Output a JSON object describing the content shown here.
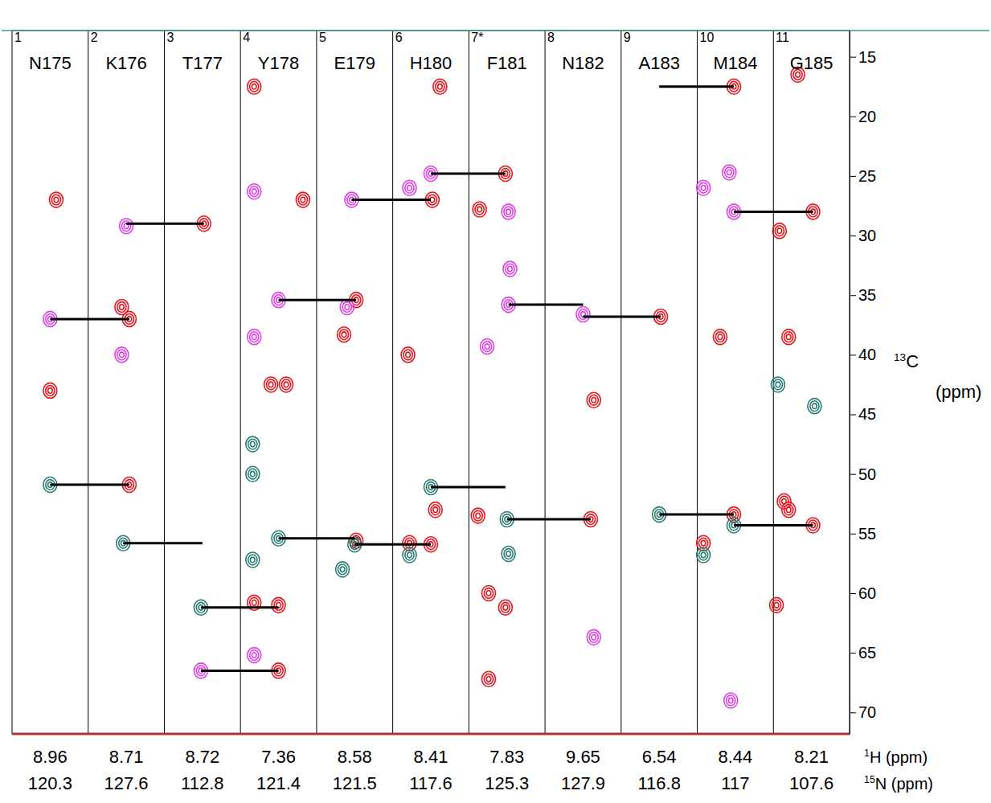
{
  "chart_data": {
    "type": "strip",
    "y_label": "13C (ppm)",
    "ylim": [
      12.8,
      71.8
    ],
    "yticks": [
      15,
      20,
      25,
      30,
      35,
      40,
      45,
      50,
      55,
      60,
      65,
      70
    ],
    "xlim": [
      -0.25,
      0.25
    ],
    "row_labels": [
      "1H (ppm)",
      "15N (ppm)"
    ],
    "strips": [
      {
        "number": "1",
        "label": "N175",
        "1H": 8.96,
        "15N": 120.3,
        "peaks": {
          "x": [
            0.04,
            0.0,
            0.0,
            0.0
          ],
          "y": [
            27.0,
            37.0,
            43.0,
            50.9
          ],
          "colors": [
            "#e8161e",
            "#e040e8",
            "#e8161e",
            "#2a7d75"
          ]
        }
      },
      {
        "number": "2",
        "label": "K176",
        "1H": 8.71,
        "15N": 127.6,
        "peaks": {
          "x": [
            0.0,
            -0.03,
            0.02,
            -0.03,
            0.02,
            -0.02
          ],
          "y": [
            29.2,
            36.0,
            37.0,
            40.0,
            50.9,
            55.8
          ],
          "colors": [
            "#e040e8",
            "#e8161e",
            "#e8161e",
            "#e040e8",
            "#e8161e",
            "#2a7d75"
          ]
        }
      },
      {
        "number": "3",
        "label": "T177",
        "1H": 8.72,
        "15N": 112.8,
        "peaks": {
          "x": [
            0.01,
            -0.01,
            -0.01
          ],
          "y": [
            29.0,
            61.2,
            66.5
          ],
          "colors": [
            "#e8161e",
            "#2a7d75",
            "#e040e8"
          ]
        }
      },
      {
        "number": "4",
        "label": "Y178",
        "1H": 7.36,
        "15N": 121.4,
        "peaks": {
          "x": [
            -0.16,
            -0.16,
            0.16,
            0.0,
            -0.16,
            -0.05,
            0.05,
            -0.17,
            -0.17,
            0.0,
            -0.17,
            -0.16,
            0.0,
            -0.16,
            0.0
          ],
          "y": [
            17.5,
            26.3,
            27.0,
            35.4,
            38.5,
            42.5,
            42.5,
            47.5,
            50.0,
            55.4,
            57.2,
            60.8,
            61.0,
            65.2,
            66.5
          ],
          "colors": [
            "#e8161e",
            "#e040e8",
            "#e8161e",
            "#e040e8",
            "#e040e8",
            "#e8161e",
            "#e8161e",
            "#2a7d75",
            "#2a7d75",
            "#2a7d75",
            "#2a7d75",
            "#e8161e",
            "#e8161e",
            "#e040e8",
            "#e8161e"
          ]
        }
      },
      {
        "number": "5",
        "label": "E179",
        "1H": 8.58,
        "15N": 121.5,
        "peaks": {
          "x": [
            -0.02,
            0.01,
            -0.05,
            -0.07,
            0.01,
            0.0,
            -0.08
          ],
          "y": [
            27.0,
            35.4,
            36.0,
            38.3,
            55.6,
            55.9,
            58.0
          ],
          "colors": [
            "#e040e8",
            "#e8161e",
            "#e040e8",
            "#e8161e",
            "#e8161e",
            "#2a7d75",
            "#2a7d75"
          ]
        }
      },
      {
        "number": "6",
        "label": "H180",
        "1H": 8.41,
        "15N": 117.6,
        "peaks": {
          "x": [
            0.06,
            0.0,
            -0.14,
            0.01,
            -0.15,
            0.0,
            0.03,
            -0.14,
            0.0,
            -0.14
          ],
          "y": [
            17.5,
            24.8,
            26.0,
            27.0,
            40.0,
            51.1,
            53.0,
            55.8,
            55.9,
            56.8
          ],
          "colors": [
            "#e8161e",
            "#e040e8",
            "#e040e8",
            "#e8161e",
            "#e8161e",
            "#2a7d75",
            "#e8161e",
            "#e8161e",
            "#e8161e",
            "#2a7d75"
          ]
        }
      },
      {
        "number": "7*",
        "label": "F181",
        "1H": 7.83,
        "15N": 125.3,
        "peaks": {
          "x": [
            -0.01,
            -0.18,
            0.01,
            0.02,
            0.01,
            -0.13,
            -0.19,
            0.0,
            0.01,
            -0.12,
            -0.01,
            -0.12
          ],
          "y": [
            24.8,
            27.8,
            28.0,
            32.8,
            35.8,
            39.3,
            53.5,
            53.8,
            56.7,
            60.0,
            61.2,
            67.2
          ],
          "colors": [
            "#e8161e",
            "#e8161e",
            "#e040e8",
            "#e040e8",
            "#e040e8",
            "#e040e8",
            "#e8161e",
            "#2a7d75",
            "#2a7d75",
            "#e8161e",
            "#e8161e",
            "#e8161e"
          ]
        }
      },
      {
        "number": "8",
        "label": "N182",
        "1H": 9.65,
        "15N": 127.9,
        "peaks": {
          "x": [
            0.0,
            0.07,
            0.05,
            0.07
          ],
          "y": [
            36.6,
            43.8,
            53.8,
            63.7
          ],
          "colors": [
            "#e040e8",
            "#e8161e",
            "#e8161e",
            "#e040e8"
          ]
        }
      },
      {
        "number": "9",
        "label": "A183",
        "1H": 6.54,
        "15N": 116.8,
        "peaks": {
          "x": [
            0.01,
            0.0
          ],
          "y": [
            36.8,
            53.4
          ],
          "colors": [
            "#e8161e",
            "#2a7d75"
          ]
        }
      },
      {
        "number": "10",
        "label": "M184",
        "1H": 8.44,
        "15N": 117,
        "peaks": {
          "x": [
            -0.01,
            -0.04,
            -0.21,
            -0.01,
            -0.1,
            -0.01,
            -0.01,
            -0.21,
            -0.21,
            -0.03
          ],
          "y": [
            17.5,
            24.7,
            26.0,
            28.0,
            38.5,
            53.4,
            54.3,
            55.8,
            56.8,
            69.0
          ],
          "colors": [
            "#e8161e",
            "#e040e8",
            "#e040e8",
            "#e040e8",
            "#e8161e",
            "#e8161e",
            "#2a7d75",
            "#e8161e",
            "#2a7d75",
            "#e040e8"
          ]
        }
      },
      {
        "number": "11",
        "label": "G185",
        "1H": 8.21,
        "15N": 107.6,
        "peaks": {
          "x": [
            -0.09,
            0.01,
            -0.21,
            -0.15,
            -0.22,
            0.02,
            -0.18,
            -0.15,
            0.01,
            -0.23
          ],
          "y": [
            16.5,
            28.0,
            29.6,
            38.5,
            42.5,
            44.3,
            52.3,
            53.0,
            54.3,
            61.0
          ],
          "colors": [
            "#e8161e",
            "#e8161e",
            "#e8161e",
            "#e8161e",
            "#2a7d75",
            "#2a7d75",
            "#e8161e",
            "#e8161e",
            "#e8161e",
            "#e8161e"
          ]
        }
      }
    ],
    "connections": [
      {
        "y": 37.0,
        "strips": [
          0,
          1
        ],
        "x": [
          0.0,
          0.02
        ]
      },
      {
        "y": 50.9,
        "strips": [
          0,
          1
        ],
        "x": [
          0.0,
          0.02
        ]
      },
      {
        "y": 29.0,
        "strips": [
          1,
          2
        ],
        "x": [
          0.0,
          0.01
        ]
      },
      {
        "y": 55.8,
        "strips": [
          1,
          2
        ],
        "x": [
          -0.02,
          0.0
        ]
      },
      {
        "y": 61.2,
        "strips": [
          2,
          3
        ],
        "x": [
          -0.01,
          0.0
        ]
      },
      {
        "y": 66.5,
        "strips": [
          2,
          3
        ],
        "x": [
          -0.01,
          0.0
        ]
      },
      {
        "y": 35.4,
        "strips": [
          3,
          4
        ],
        "x": [
          0.0,
          0.01
        ]
      },
      {
        "y": 55.4,
        "strips": [
          3,
          4
        ],
        "x": [
          0.0,
          0.0
        ]
      },
      {
        "y": 27.0,
        "strips": [
          4,
          5
        ],
        "x": [
          -0.02,
          0.0
        ]
      },
      {
        "y": 55.9,
        "strips": [
          4,
          5
        ],
        "x": [
          0.0,
          0.0
        ]
      },
      {
        "y": 51.1,
        "strips": [
          5,
          6
        ],
        "x": [
          0.0,
          -0.01
        ]
      },
      {
        "y": 24.8,
        "strips": [
          5,
          6
        ],
        "x": [
          0.0,
          -0.01
        ]
      },
      {
        "y": 53.8,
        "strips": [
          6,
          7
        ],
        "x": [
          0.0,
          0.05
        ]
      },
      {
        "y": 35.8,
        "strips": [
          6,
          7
        ],
        "x": [
          0.01,
          0.0
        ]
      },
      {
        "y": 36.8,
        "strips": [
          7,
          8
        ],
        "x": [
          0.0,
          0.01
        ]
      },
      {
        "y": 17.5,
        "strips": [
          8,
          9
        ],
        "x": [
          0.0,
          -0.01
        ]
      },
      {
        "y": 53.4,
        "strips": [
          8,
          9
        ],
        "x": [
          0.0,
          -0.01
        ]
      },
      {
        "y": 28.0,
        "strips": [
          9,
          10
        ],
        "x": [
          -0.01,
          0.01
        ]
      },
      {
        "y": 54.3,
        "strips": [
          9,
          10
        ],
        "x": [
          -0.01,
          0.01
        ]
      }
    ]
  }
}
